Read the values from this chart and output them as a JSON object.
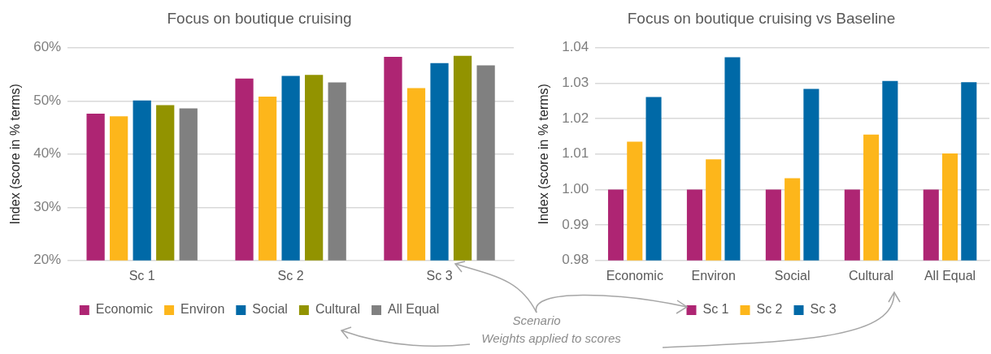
{
  "chart_data": [
    {
      "type": "bar",
      "title": "Focus on boutique cruising",
      "ylabel": "Index (score in % terms)",
      "categories": [
        "Sc 1",
        "Sc 2",
        "Sc 3"
      ],
      "series": [
        {
          "name": "Economic",
          "color": "#ae2573",
          "values": [
            47.6,
            54.2,
            58.3
          ]
        },
        {
          "name": "Environ",
          "color": "#fdb61b",
          "values": [
            47.1,
            50.8,
            52.4
          ]
        },
        {
          "name": "Social",
          "color": "#0069a7",
          "values": [
            50.1,
            54.7,
            57.1
          ]
        },
        {
          "name": "Cultural",
          "color": "#929300",
          "values": [
            49.2,
            54.9,
            58.5
          ]
        },
        {
          "name": "All Equal",
          "color": "#808080",
          "values": [
            48.6,
            53.5,
            56.7
          ]
        }
      ],
      "ylim": [
        20,
        60
      ],
      "yticks": [
        {
          "value": 20,
          "label": "20%"
        },
        {
          "value": 30,
          "label": "30%"
        },
        {
          "value": 40,
          "label": "40%"
        },
        {
          "value": 50,
          "label": "50%"
        },
        {
          "value": 60,
          "label": "60%"
        }
      ],
      "grid": "y",
      "legend": "bottom",
      "annotations": [
        "Scenario",
        "Weights applied to scores"
      ]
    },
    {
      "type": "bar",
      "title": "Focus on boutique cruising vs Baseline",
      "ylabel": "Index (score in % terms)",
      "categories": [
        "Economic",
        "Environ",
        "Social",
        "Cultural",
        "All Equal"
      ],
      "series": [
        {
          "name": "Sc 1",
          "color": "#ae2573",
          "values": [
            1.0,
            1.0,
            1.0,
            1.0,
            1.0
          ]
        },
        {
          "name": "Sc 2",
          "color": "#fdb61b",
          "values": [
            1.0135,
            1.0085,
            1.0032,
            1.0155,
            1.0102
          ]
        },
        {
          "name": "Sc 3",
          "color": "#0069a7",
          "values": [
            1.0261,
            1.0373,
            1.0284,
            1.0306,
            1.0303
          ]
        }
      ],
      "ylim": [
        0.98,
        1.04
      ],
      "yticks": [
        {
          "value": 0.98,
          "label": "0.98"
        },
        {
          "value": 0.99,
          "label": "0.99"
        },
        {
          "value": 1.0,
          "label": "1.00"
        },
        {
          "value": 1.01,
          "label": "1.01"
        },
        {
          "value": 1.02,
          "label": "1.02"
        },
        {
          "value": 1.03,
          "label": "1.03"
        },
        {
          "value": 1.04,
          "label": "1.04"
        }
      ],
      "grid": "y",
      "legend": "bottom"
    }
  ]
}
